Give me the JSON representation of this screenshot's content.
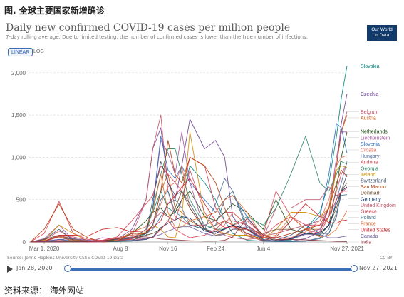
{
  "caption_top": "图. 全球主要国家新增确诊",
  "caption_bottom": "资料来源： 海外网站",
  "header": {
    "title": "Daily new confirmed COVID-19 cases per million people",
    "subtitle": "7-day rolling average. Due to limited testing, the number of confirmed cases is lower than the true number of infections.",
    "logo_line1": "Our World",
    "logo_line2": "in Data"
  },
  "controls": {
    "linear_label": "LINEAR",
    "log_label": "LOG",
    "active_scale": "linear"
  },
  "footer": {
    "source": "Source: Johns Hopkins University CSSE COVID-19 Data",
    "license": "CC BY"
  },
  "timeline": {
    "start": "Jan 28, 2020",
    "end": "Nov 27, 2021"
  },
  "chart_data": {
    "type": "line",
    "title": "Daily new confirmed COVID-19 cases per million people",
    "xlabel": "",
    "ylabel": "",
    "ylim": [
      0,
      2150
    ],
    "x_ticks": [
      "Mar 1, 2020",
      "Aug 8, 2020",
      "Nov 16, 2020",
      "Feb 24, 2021",
      "Jun 4, 2021",
      "Nov 27, 2021"
    ],
    "y_ticks": [
      0,
      500,
      1000,
      1500,
      2000
    ],
    "y_tick_labels": [
      "0",
      "500",
      "1,000",
      "1,500",
      "2,000"
    ],
    "grid": true,
    "x": [
      "Feb 1, 2020",
      "Mar 1, 2020",
      "Apr 1, 2020",
      "May 1, 2020",
      "Jun 1, 2020",
      "Jul 1, 2020",
      "Aug 1, 2020",
      "Sep 1, 2020",
      "Oct 1, 2020",
      "Oct 15, 2020",
      "Nov 1, 2020",
      "Nov 16, 2020",
      "Dec 1, 2020",
      "Dec 15, 2020",
      "Jan 1, 2021",
      "Feb 1, 2021",
      "Feb 24, 2021",
      "Mar 15, 2021",
      "Apr 1, 2021",
      "May 1, 2021",
      "Jun 4, 2021",
      "Jul 1, 2021",
      "Aug 1, 2021",
      "Sep 1, 2021",
      "Oct 1, 2021",
      "Oct 20, 2021",
      "Nov 5, 2021",
      "Nov 15, 2021",
      "Nov 27, 2021"
    ],
    "series": [
      {
        "name": "Slovakia",
        "color": "#00847e",
        "values": [
          0,
          10,
          10,
          2,
          2,
          5,
          10,
          40,
          150,
          350,
          600,
          400,
          350,
          500,
          900,
          700,
          500,
          250,
          100,
          20,
          10,
          10,
          20,
          150,
          350,
          700,
          1250,
          1700,
          2080
        ]
      },
      {
        "name": "Czechia",
        "color": "#6d3e91",
        "values": [
          0,
          5,
          30,
          10,
          5,
          15,
          30,
          150,
          500,
          1100,
          1350,
          700,
          500,
          900,
          1450,
          1100,
          1200,
          1000,
          300,
          80,
          10,
          10,
          10,
          40,
          120,
          400,
          900,
          1400,
          1750
        ]
      },
      {
        "name": "Belgium",
        "color": "#c15065",
        "values": [
          0,
          20,
          130,
          40,
          10,
          10,
          40,
          80,
          500,
          1100,
          1500,
          600,
          300,
          250,
          200,
          200,
          250,
          350,
          350,
          200,
          70,
          100,
          150,
          200,
          250,
          400,
          900,
          1300,
          1540
        ]
      },
      {
        "name": "Austria",
        "color": "#be5915",
        "values": [
          0,
          15,
          60,
          10,
          5,
          10,
          20,
          50,
          100,
          200,
          600,
          800,
          400,
          350,
          250,
          150,
          200,
          250,
          200,
          70,
          15,
          10,
          40,
          150,
          150,
          300,
          900,
          1300,
          1500
        ]
      },
      {
        "name": "Netherlands",
        "color": "#18470f",
        "values": [
          0,
          10,
          70,
          20,
          5,
          10,
          30,
          100,
          250,
          350,
          400,
          300,
          350,
          500,
          600,
          300,
          250,
          350,
          450,
          350,
          150,
          500,
          150,
          100,
          80,
          200,
          650,
          1000,
          1300
        ]
      },
      {
        "name": "Liechtenstein",
        "color": "#a2559c",
        "values": [
          0,
          40,
          200,
          20,
          0,
          50,
          30,
          50,
          100,
          400,
          1200,
          1050,
          800,
          1300,
          700,
          150,
          100,
          150,
          200,
          100,
          50,
          50,
          50,
          100,
          150,
          400,
          1000,
          1300,
          1300
        ]
      },
      {
        "name": "Slovenia",
        "color": "#286bbb",
        "values": [
          0,
          10,
          30,
          10,
          5,
          5,
          10,
          40,
          150,
          400,
          1250,
          850,
          750,
          900,
          700,
          500,
          350,
          500,
          550,
          300,
          50,
          20,
          30,
          150,
          300,
          800,
          1400,
          1350,
          1050
        ]
      },
      {
        "name": "Croatia",
        "color": "#e56e5a",
        "values": [
          0,
          5,
          20,
          10,
          5,
          20,
          50,
          80,
          100,
          200,
          450,
          650,
          700,
          900,
          400,
          150,
          120,
          200,
          350,
          200,
          50,
          20,
          50,
          120,
          250,
          500,
          900,
          1000,
          1020
        ]
      },
      {
        "name": "Andorra",
        "color": "#d73c50",
        "values": [
          0,
          100,
          480,
          100,
          30,
          20,
          60,
          250,
          450,
          550,
          900,
          800,
          700,
          600,
          1000,
          900,
          400,
          250,
          200,
          250,
          80,
          600,
          300,
          150,
          100,
          300,
          600,
          800,
          930
        ]
      },
      {
        "name": "Hungary",
        "color": "#4c6a9c",
        "values": [
          0,
          5,
          10,
          5,
          2,
          2,
          5,
          50,
          100,
          150,
          300,
          450,
          500,
          400,
          200,
          150,
          450,
          750,
          600,
          150,
          10,
          5,
          5,
          10,
          50,
          150,
          500,
          700,
          950
        ]
      },
      {
        "name": "Georgia",
        "color": "#2c8465",
        "values": [
          0,
          5,
          10,
          5,
          5,
          5,
          5,
          10,
          100,
          400,
          800,
          1100,
          1100,
          800,
          500,
          200,
          150,
          150,
          200,
          300,
          200,
          400,
          800,
          1250,
          700,
          600,
          800,
          950,
          920
        ]
      },
      {
        "name": "Ireland",
        "color": "#ce8b00",
        "values": [
          0,
          20,
          200,
          100,
          10,
          5,
          10,
          40,
          120,
          200,
          150,
          60,
          50,
          300,
          1300,
          300,
          150,
          100,
          80,
          80,
          40,
          150,
          350,
          350,
          300,
          400,
          850,
          900,
          880
        ]
      },
      {
        "name": "Switzerland",
        "color": "#3c4e66",
        "values": [
          0,
          30,
          150,
          20,
          5,
          10,
          20,
          50,
          100,
          500,
          950,
          700,
          550,
          600,
          450,
          150,
          120,
          150,
          200,
          150,
          50,
          20,
          80,
          200,
          100,
          100,
          300,
          600,
          800
        ]
      },
      {
        "name": "San Marino",
        "color": "#b13507",
        "values": [
          0,
          150,
          450,
          150,
          50,
          0,
          10,
          100,
          100,
          200,
          600,
          1200,
          800,
          700,
          1000,
          900,
          700,
          400,
          200,
          100,
          20,
          50,
          100,
          150,
          200,
          400,
          700,
          850,
          770
        ]
      },
      {
        "name": "Denmark",
        "color": "#6b4a2a",
        "values": [
          0,
          30,
          80,
          30,
          10,
          5,
          10,
          40,
          80,
          100,
          150,
          250,
          400,
          600,
          400,
          150,
          80,
          100,
          150,
          150,
          100,
          150,
          150,
          100,
          100,
          200,
          400,
          600,
          700
        ]
      },
      {
        "name": "Germany",
        "color": "#00295b",
        "values": [
          0,
          10,
          70,
          20,
          5,
          5,
          10,
          15,
          30,
          60,
          170,
          220,
          260,
          300,
          280,
          130,
          100,
          160,
          200,
          150,
          30,
          10,
          40,
          100,
          100,
          200,
          450,
          600,
          650
        ]
      },
      {
        "name": "United Kingdom",
        "color": "#c15065",
        "values": [
          0,
          5,
          60,
          60,
          20,
          10,
          15,
          40,
          150,
          250,
          350,
          300,
          250,
          500,
          850,
          350,
          150,
          80,
          50,
          30,
          50,
          400,
          400,
          500,
          500,
          650,
          550,
          580,
          640
        ]
      },
      {
        "name": "Greece",
        "color": "#d73c50",
        "values": [
          0,
          5,
          5,
          1,
          1,
          2,
          20,
          30,
          40,
          50,
          150,
          250,
          150,
          100,
          50,
          80,
          150,
          250,
          250,
          200,
          60,
          200,
          300,
          200,
          200,
          300,
          500,
          600,
          600
        ]
      },
      {
        "name": "Poland",
        "color": "#3b6f8a",
        "values": [
          0,
          5,
          10,
          10,
          10,
          10,
          15,
          20,
          80,
          200,
          500,
          600,
          350,
          300,
          200,
          150,
          200,
          500,
          600,
          200,
          20,
          5,
          5,
          10,
          40,
          100,
          350,
          550,
          560
        ]
      },
      {
        "name": "France",
        "color": "#e06b2d",
        "values": [
          0,
          15,
          70,
          20,
          10,
          10,
          20,
          120,
          180,
          350,
          800,
          350,
          170,
          180,
          250,
          300,
          350,
          500,
          550,
          350,
          50,
          80,
          300,
          150,
          60,
          80,
          150,
          250,
          370
        ]
      },
      {
        "name": "United States",
        "color": "#ca2028",
        "values": [
          0,
          5,
          80,
          80,
          70,
          150,
          170,
          120,
          130,
          170,
          250,
          450,
          550,
          650,
          750,
          450,
          250,
          170,
          180,
          150,
          45,
          60,
          250,
          450,
          300,
          230,
          220,
          250,
          260
        ]
      },
      {
        "name": "Canada",
        "color": "#6e5b9a",
        "values": [
          0,
          5,
          30,
          40,
          20,
          10,
          10,
          15,
          40,
          60,
          90,
          130,
          160,
          180,
          180,
          100,
          70,
          90,
          150,
          180,
          30,
          10,
          30,
          90,
          90,
          50,
          50,
          60,
          70
        ]
      },
      {
        "name": "India",
        "color": "#883039",
        "values": [
          0,
          0,
          0,
          2,
          5,
          15,
          40,
          60,
          60,
          50,
          35,
          30,
          25,
          20,
          15,
          10,
          10,
          20,
          60,
          280,
          80,
          30,
          30,
          25,
          18,
          12,
          8,
          7,
          6
        ]
      }
    ]
  }
}
